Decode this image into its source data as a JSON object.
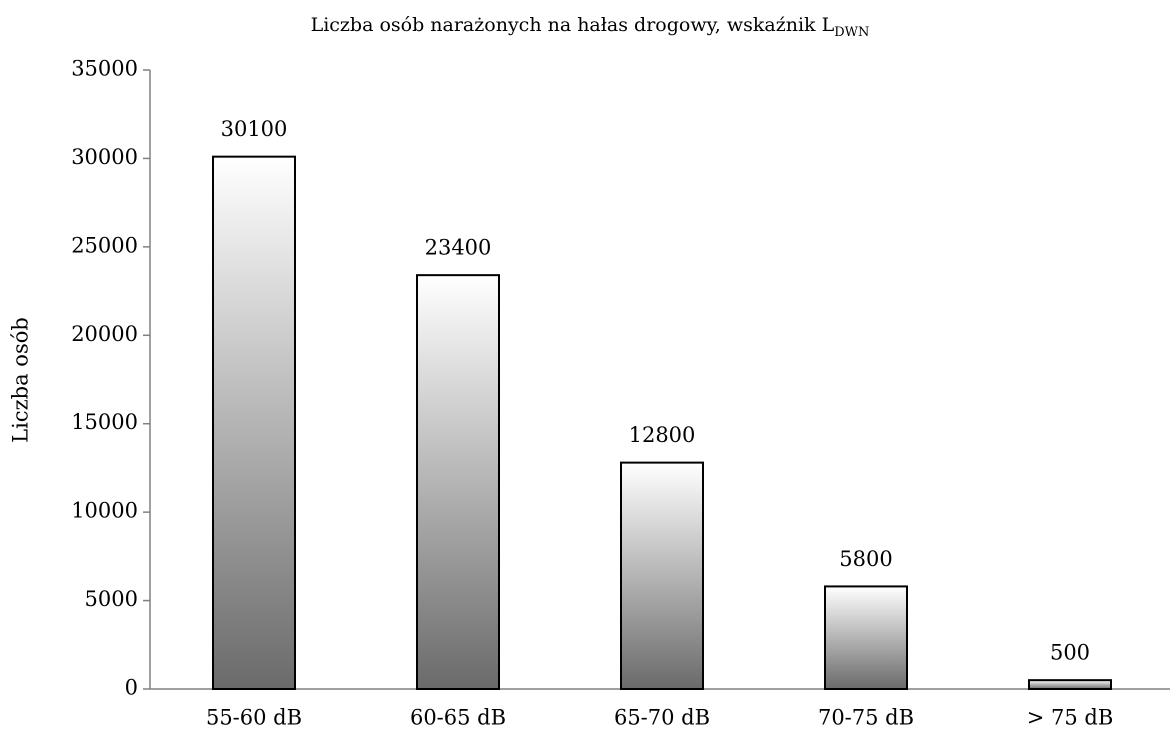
{
  "chart_data": {
    "type": "bar",
    "title": "Liczba osób narażonych na hałas drogowy, wskaźnik L",
    "title_subscript": "DWN",
    "y_label": "Liczba osób",
    "categories": [
      "55-60 dB",
      "60-65 dB",
      "65-70 dB",
      "70-75 dB",
      "> 75 dB"
    ],
    "values": [
      30100,
      23400,
      12800,
      5800,
      500
    ],
    "color": "#6a6a6a",
    "ylim": [
      0,
      35000
    ],
    "yticks": [
      0,
      5000,
      10000,
      15000,
      20000,
      25000,
      30000,
      35000
    ],
    "grid": false
  }
}
